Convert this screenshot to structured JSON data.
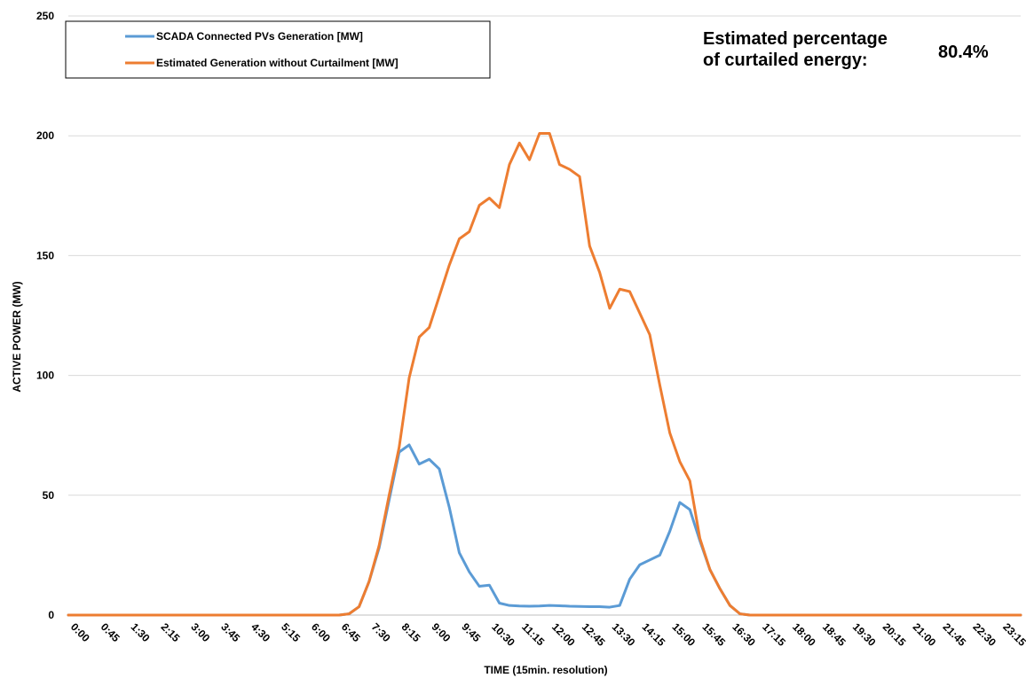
{
  "chart_data": {
    "type": "line",
    "title": "",
    "xlabel": "TIME (15min. resolution)",
    "ylabel": "ACTIVE POWER (MW)",
    "ylim": [
      0,
      250
    ],
    "yticks": [
      0,
      50,
      100,
      150,
      200,
      250
    ],
    "grid": "horizontal",
    "legend_position": "top-left",
    "x_tick_labels": [
      "0:00",
      "0:45",
      "1:30",
      "2:15",
      "3:00",
      "3:45",
      "4:30",
      "5:15",
      "6:00",
      "6:45",
      "7:30",
      "8:15",
      "9:00",
      "9:45",
      "10:30",
      "11:15",
      "12:00",
      "12:45",
      "13:30",
      "14:15",
      "15:00",
      "15:45",
      "16:30",
      "17:15",
      "18:00",
      "18:45",
      "19:30",
      "20:15",
      "21:00",
      "21:45",
      "22:30",
      "23:15"
    ],
    "x": [
      "0:00",
      "0:15",
      "0:30",
      "0:45",
      "1:00",
      "1:15",
      "1:30",
      "1:45",
      "2:00",
      "2:15",
      "2:30",
      "2:45",
      "3:00",
      "3:15",
      "3:30",
      "3:45",
      "4:00",
      "4:15",
      "4:30",
      "4:45",
      "5:00",
      "5:15",
      "5:30",
      "5:45",
      "6:00",
      "6:15",
      "6:30",
      "6:45",
      "7:00",
      "7:15",
      "7:30",
      "7:45",
      "8:00",
      "8:15",
      "8:30",
      "8:45",
      "9:00",
      "9:15",
      "9:30",
      "9:45",
      "10:00",
      "10:15",
      "10:30",
      "10:45",
      "11:00",
      "11:15",
      "11:30",
      "11:45",
      "12:00",
      "12:15",
      "12:30",
      "12:45",
      "13:00",
      "13:15",
      "13:30",
      "13:45",
      "14:00",
      "14:15",
      "14:30",
      "14:45",
      "15:00",
      "15:15",
      "15:30",
      "15:45",
      "16:00",
      "16:15",
      "16:30",
      "16:45",
      "17:00",
      "17:15",
      "17:30",
      "17:45",
      "18:00",
      "18:15",
      "18:30",
      "18:45",
      "19:00",
      "19:15",
      "19:30",
      "19:45",
      "20:00",
      "20:15",
      "20:30",
      "20:45",
      "21:00",
      "21:15",
      "21:30",
      "21:45",
      "22:00",
      "22:15",
      "22:30",
      "22:45",
      "23:00",
      "23:15",
      "23:30",
      "23:45"
    ],
    "series": [
      {
        "name": "SCADA Connected PVs Generation [MW]",
        "color": "#5B9BD5",
        "values": [
          0,
          0,
          0,
          0,
          0,
          0,
          0,
          0,
          0,
          0,
          0,
          0,
          0,
          0,
          0,
          0,
          0,
          0,
          0,
          0,
          0,
          0,
          0,
          0,
          0,
          0,
          0,
          0,
          0.5,
          3.5,
          14,
          28,
          48,
          68,
          71,
          63,
          65,
          61,
          45,
          26,
          18,
          12,
          12.5,
          5,
          4,
          3.8,
          3.7,
          3.8,
          4,
          3.9,
          3.7,
          3.6,
          3.5,
          3.5,
          3.3,
          4,
          15,
          21,
          23,
          25,
          35,
          47,
          44,
          31,
          19,
          11,
          4,
          0.5,
          0,
          0,
          0,
          0,
          0,
          0,
          0,
          0,
          0,
          0,
          0,
          0,
          0,
          0,
          0,
          0,
          0,
          0,
          0,
          0,
          0,
          0,
          0,
          0,
          0,
          0,
          0,
          0
        ]
      },
      {
        "name": "Estimated Generation without Curtailment [MW]",
        "color": "#ED7D31",
        "values": [
          0,
          0,
          0,
          0,
          0,
          0,
          0,
          0,
          0,
          0,
          0,
          0,
          0,
          0,
          0,
          0,
          0,
          0,
          0,
          0,
          0,
          0,
          0,
          0,
          0,
          0,
          0,
          0,
          0.5,
          3.5,
          14,
          29,
          50,
          70,
          99,
          116,
          120,
          133,
          146,
          157,
          160,
          171,
          174,
          170,
          188,
          197,
          190,
          201,
          201,
          188,
          186,
          183,
          154,
          143,
          128,
          136,
          135,
          126,
          117,
          96,
          76,
          64,
          56,
          32,
          19,
          11,
          4,
          0.5,
          0,
          0,
          0,
          0,
          0,
          0,
          0,
          0,
          0,
          0,
          0,
          0,
          0,
          0,
          0,
          0,
          0,
          0,
          0,
          0,
          0,
          0,
          0,
          0,
          0,
          0,
          0,
          0
        ]
      }
    ]
  },
  "annotation": {
    "label_line1": "Estimated percentage",
    "label_line2": "of curtailed energy:",
    "value": "80.4%"
  }
}
